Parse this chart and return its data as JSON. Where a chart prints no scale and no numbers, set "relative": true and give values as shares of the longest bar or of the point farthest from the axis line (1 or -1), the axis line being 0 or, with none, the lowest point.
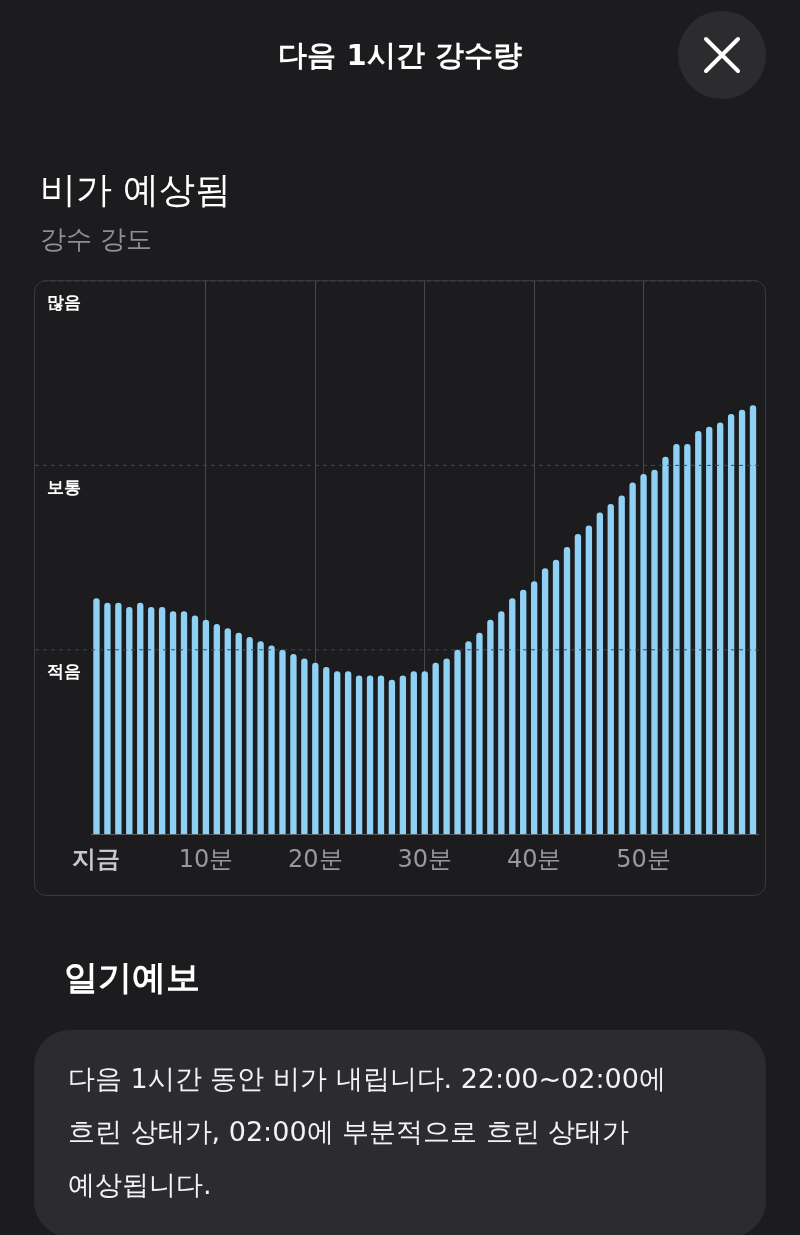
{
  "chart_data": {
    "type": "bar",
    "title": "비가 예상됨",
    "subtitle": "강수 강도",
    "annotations": [
      "다음 1시간 강수량",
      "일기예보",
      "다음 1시간 동안 비가 내립니다. 22:00~02:00에 흐린 상태가, 02:00에 부분적으로 흐린 상태가 예상됩니다."
    ],
    "categories": [
      "지금",
      null,
      null,
      null,
      null,
      null,
      null,
      null,
      null,
      null,
      "10분",
      null,
      null,
      null,
      null,
      null,
      null,
      null,
      null,
      null,
      "20분",
      null,
      null,
      null,
      null,
      null,
      null,
      null,
      null,
      null,
      "30분",
      null,
      null,
      null,
      null,
      null,
      null,
      null,
      null,
      null,
      "40분",
      null,
      null,
      null,
      null,
      null,
      null,
      null,
      null,
      null,
      "50분",
      null,
      null,
      null,
      null,
      null,
      null,
      null,
      null,
      null,
      null
    ],
    "values": [
      0.55,
      0.54,
      0.54,
      0.53,
      0.54,
      0.53,
      0.53,
      0.52,
      0.52,
      0.51,
      0.5,
      0.49,
      0.48,
      0.47,
      0.46,
      0.45,
      0.44,
      0.43,
      0.42,
      0.41,
      0.4,
      0.39,
      0.38,
      0.38,
      0.37,
      0.37,
      0.37,
      0.36,
      0.37,
      0.38,
      0.38,
      0.4,
      0.41,
      0.43,
      0.45,
      0.47,
      0.5,
      0.52,
      0.55,
      0.57,
      0.59,
      0.62,
      0.64,
      0.67,
      0.7,
      0.72,
      0.75,
      0.77,
      0.79,
      0.82,
      0.84,
      0.85,
      0.88,
      0.91,
      0.91,
      0.94,
      0.95,
      0.96,
      0.98,
      0.99,
      1
    ],
    "color": "#8fd1f5",
    "relative": true,
    "ref_lines": [
      {
        "axis": "y",
        "value": 0.43,
        "label": "적음",
        "color": "#48484a",
        "line_style": "dashed"
      },
      {
        "axis": "y",
        "value": 0.86,
        "label": "보통",
        "color": "#48484a",
        "line_style": "dashed"
      },
      {
        "axis": "y",
        "value": 1.29,
        "label": "많음",
        "color": "#48484a",
        "line_style": "dashed"
      }
    ],
    "grid": "x"
  }
}
